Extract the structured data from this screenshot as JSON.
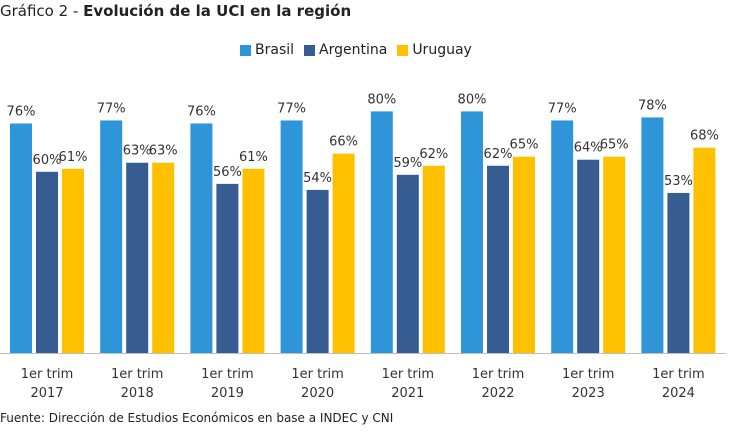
{
  "title": {
    "prefix": "Gráfico 2 - ",
    "main": "Evolución de la UCI en la región"
  },
  "source": "Fuente: Dirección de Estudios Económicos en base a INDEC y CNI",
  "chart_data": {
    "type": "bar",
    "categories": [
      [
        "1er trim",
        "2017"
      ],
      [
        "1er trim",
        "2018"
      ],
      [
        "1er trim",
        "2019"
      ],
      [
        "1er trim",
        "2020"
      ],
      [
        "1er trim",
        "2021"
      ],
      [
        "1er trim",
        "2022"
      ],
      [
        "1er trim",
        "2023"
      ],
      [
        "1er trim",
        "2024"
      ]
    ],
    "series": [
      {
        "name": "Brasil",
        "color": "#2e96d8",
        "values": [
          76,
          77,
          76,
          77,
          80,
          80,
          77,
          78
        ]
      },
      {
        "name": "Argentina",
        "color": "#365c91",
        "values": [
          60,
          63,
          56,
          54,
          59,
          62,
          64,
          53
        ]
      },
      {
        "name": "Uruguay",
        "color": "#ffc000",
        "values": [
          61,
          63,
          61,
          66,
          62,
          65,
          65,
          68
        ]
      }
    ],
    "value_suffix": "%",
    "legend_position": "top-center",
    "grid": false
  }
}
